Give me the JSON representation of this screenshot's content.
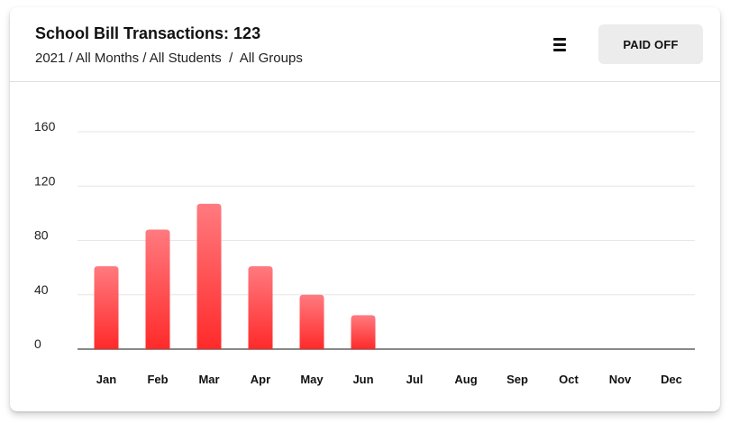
{
  "header": {
    "title": "School Bill Transactions: 123",
    "subtitle": "2021 / All Months / All Students  /  All Groups",
    "menu_icon": "menu-icon",
    "paid_off_label": "PAID OFF"
  },
  "colors": {
    "bar_top": "#ff7a7f",
    "bar_bottom": "#ff2a2a",
    "grid": "#e6e6e6",
    "axis": "#111111"
  },
  "chart_data": {
    "type": "bar",
    "categories": [
      "Jan",
      "Feb",
      "Mar",
      "Apr",
      "May",
      "Jun",
      "Jul",
      "Aug",
      "Sep",
      "Oct",
      "Nov",
      "Dec"
    ],
    "values": [
      61,
      88,
      107,
      61,
      40,
      25,
      0,
      0,
      0,
      0,
      0,
      0
    ],
    "y_ticks": [
      "0",
      "40",
      "80",
      "120",
      "160"
    ],
    "ylim": [
      0,
      160
    ],
    "title": "School Bill Transactions: 123",
    "xlabel": "",
    "ylabel": "",
    "grid": true
  }
}
